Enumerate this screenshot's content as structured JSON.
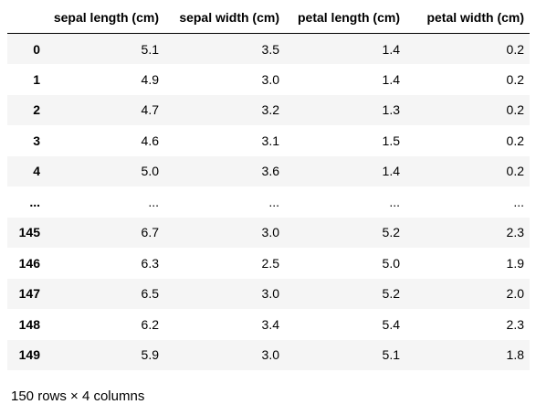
{
  "table": {
    "columns": [
      "sepal length (cm)",
      "sepal width (cm)",
      "petal length (cm)",
      "petal width (cm)"
    ],
    "rows": [
      {
        "index": "0",
        "cells": [
          "5.1",
          "3.5",
          "1.4",
          "0.2"
        ]
      },
      {
        "index": "1",
        "cells": [
          "4.9",
          "3.0",
          "1.4",
          "0.2"
        ]
      },
      {
        "index": "2",
        "cells": [
          "4.7",
          "3.2",
          "1.3",
          "0.2"
        ]
      },
      {
        "index": "3",
        "cells": [
          "4.6",
          "3.1",
          "1.5",
          "0.2"
        ]
      },
      {
        "index": "4",
        "cells": [
          "5.0",
          "3.6",
          "1.4",
          "0.2"
        ]
      },
      {
        "index": "...",
        "cells": [
          "...",
          "...",
          "...",
          "..."
        ]
      },
      {
        "index": "145",
        "cells": [
          "6.7",
          "3.0",
          "5.2",
          "2.3"
        ]
      },
      {
        "index": "146",
        "cells": [
          "6.3",
          "2.5",
          "5.0",
          "1.9"
        ]
      },
      {
        "index": "147",
        "cells": [
          "6.5",
          "3.0",
          "5.2",
          "2.0"
        ]
      },
      {
        "index": "148",
        "cells": [
          "6.2",
          "3.4",
          "5.4",
          "2.3"
        ]
      },
      {
        "index": "149",
        "cells": [
          "5.9",
          "3.0",
          "5.1",
          "1.8"
        ]
      }
    ]
  },
  "footer": "150 rows × 4 columns"
}
